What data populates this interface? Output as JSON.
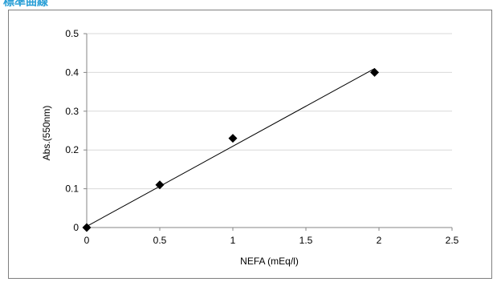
{
  "header": {
    "text": "標準曲線"
  },
  "chart_data": {
    "type": "scatter",
    "title": "",
    "xlabel": "NEFA (mEq/l)",
    "ylabel": "Abs.(550nm)",
    "xlim": [
      0,
      2.5
    ],
    "ylim": [
      0,
      0.5
    ],
    "x_ticks": [
      "0",
      "0.5",
      "1",
      "1.5",
      "2",
      "2.5"
    ],
    "y_ticks": [
      "0",
      "0.1",
      "0.2",
      "0.3",
      "0.4",
      "0.5"
    ],
    "grid": "horizontal",
    "legend": "none",
    "marker": "diamond",
    "colors": {
      "marker": "#000000",
      "grid": "#d9d9d9",
      "axis": "#868686",
      "frame": "#7f7f7f",
      "trendline": "#000000",
      "header": "#2a9fd6"
    },
    "series": [
      {
        "x": [
          0,
          0.5,
          1,
          1.97
        ],
        "y": [
          0,
          0.11,
          0.23,
          0.4
        ]
      }
    ],
    "trendline": {
      "type": "linear",
      "x": [
        0,
        1.97
      ],
      "y": [
        0.003,
        0.41
      ]
    }
  }
}
